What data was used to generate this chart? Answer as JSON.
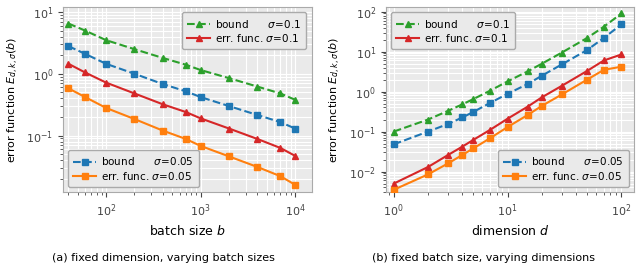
{
  "plot_a": {
    "xlabel": "batch size $b$",
    "ylabel": "error function $E_{d,k,\\sigma}(b)$",
    "green_bound_x": [
      40,
      60,
      100,
      200,
      400,
      700,
      1000,
      2000,
      4000,
      7000,
      10000
    ],
    "green_bound_y": [
      6.5,
      5.0,
      3.5,
      2.5,
      1.8,
      1.4,
      1.15,
      0.85,
      0.62,
      0.48,
      0.38
    ],
    "red_errf_x": [
      40,
      60,
      100,
      200,
      400,
      700,
      1000,
      2000,
      4000,
      7000,
      10000
    ],
    "red_errf_y": [
      1.45,
      1.05,
      0.72,
      0.48,
      0.32,
      0.24,
      0.19,
      0.13,
      0.088,
      0.063,
      0.047
    ],
    "blue_bound_x": [
      40,
      60,
      100,
      200,
      400,
      700,
      1000,
      2000,
      4000,
      7000,
      10000
    ],
    "blue_bound_y": [
      2.8,
      2.1,
      1.45,
      1.0,
      0.68,
      0.52,
      0.42,
      0.3,
      0.215,
      0.165,
      0.13
    ],
    "orange_errf_x": [
      40,
      60,
      100,
      200,
      400,
      700,
      1000,
      2000,
      4000,
      7000,
      10000
    ],
    "orange_errf_y": [
      0.58,
      0.42,
      0.28,
      0.185,
      0.12,
      0.088,
      0.068,
      0.046,
      0.031,
      0.022,
      0.016
    ],
    "xlim": [
      35,
      15000
    ],
    "ylim": [
      0.012,
      12.0
    ]
  },
  "plot_b": {
    "xlabel": "dimension $d$",
    "ylabel": "error function $E_{d,k,\\sigma}(b)$",
    "green_bound_x": [
      1,
      2,
      3,
      4,
      5,
      7,
      10,
      15,
      20,
      30,
      50,
      70,
      100
    ],
    "green_bound_y": [
      0.1,
      0.2,
      0.33,
      0.48,
      0.65,
      1.05,
      1.8,
      3.2,
      5.0,
      9.5,
      22.0,
      42.0,
      90.0
    ],
    "red_errf_x": [
      1,
      2,
      3,
      4,
      5,
      7,
      10,
      15,
      20,
      30,
      50,
      70,
      100
    ],
    "red_errf_y": [
      0.005,
      0.013,
      0.026,
      0.042,
      0.062,
      0.11,
      0.21,
      0.42,
      0.72,
      1.4,
      3.3,
      6.0,
      8.5
    ],
    "blue_bound_x": [
      1,
      2,
      3,
      4,
      5,
      7,
      10,
      15,
      20,
      30,
      50,
      70,
      100
    ],
    "blue_bound_y": [
      0.048,
      0.1,
      0.155,
      0.225,
      0.31,
      0.52,
      0.88,
      1.55,
      2.5,
      4.8,
      11.0,
      22.0,
      48.0
    ],
    "orange_errf_x": [
      1,
      2,
      3,
      4,
      5,
      7,
      10,
      15,
      20,
      30,
      50,
      70,
      100
    ],
    "orange_errf_y": [
      0.0035,
      0.0085,
      0.016,
      0.026,
      0.038,
      0.068,
      0.13,
      0.26,
      0.44,
      0.85,
      2.0,
      3.5,
      4.2
    ],
    "xlim": [
      0.85,
      130
    ],
    "ylim": [
      0.003,
      130
    ]
  },
  "colors": {
    "green": "#2ca02c",
    "red": "#d62728",
    "blue": "#1f77b4",
    "orange": "#ff7f0e"
  },
  "bg_color": "#eaeaea",
  "grid_color": "white",
  "marker_size": 5,
  "linewidth": 1.5
}
